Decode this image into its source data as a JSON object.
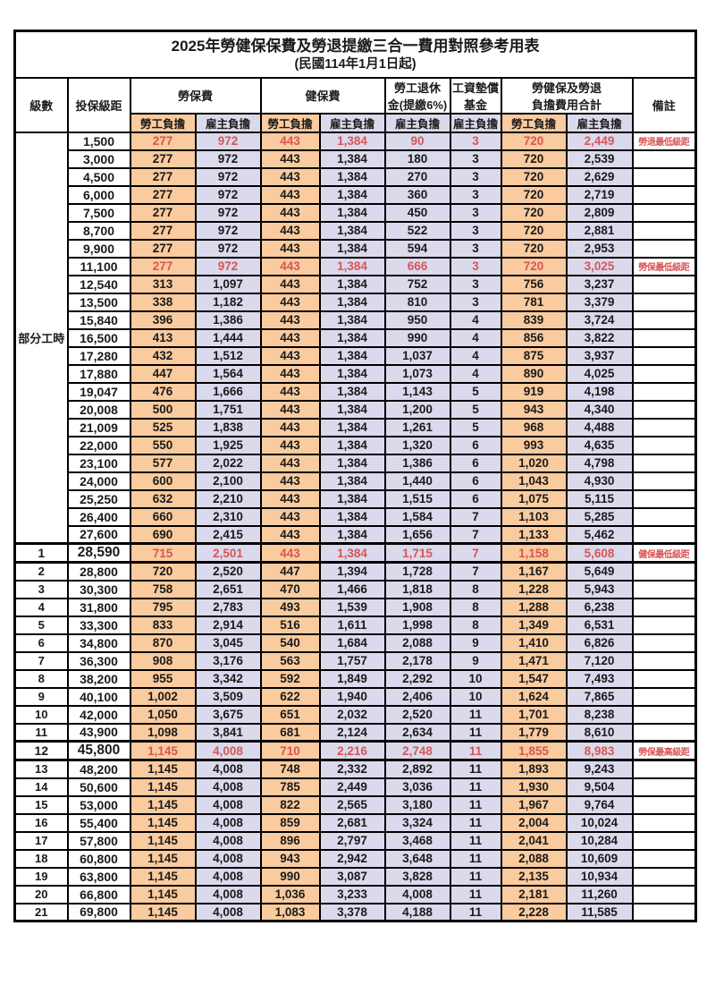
{
  "page": {
    "title_line1": "2025年勞健保保費及勞退提繳三合一費用對照參考用表",
    "title_line2": "(民國114年1月1日起)"
  },
  "colors": {
    "employee_bg": "#F9CB9E",
    "employer_bg": "#DBD9EC",
    "highlight_red": "#D95555",
    "border": "#000000"
  },
  "header": {
    "level": "級數",
    "bracket": "投保級距",
    "labor_fee": "勞保費",
    "health_fee": "健保費",
    "pension_line1": "勞工退休",
    "pension_line2": "金(提繳6%)",
    "fund_line1": "工資墊償",
    "fund_line2": "基金",
    "total_line1": "勞健保及勞退",
    "total_line2": "負擔費用合計",
    "remark": "備註",
    "employee_share": "勞工負擔",
    "employer_share": "雇主負擔"
  },
  "part_time": {
    "label": "部分工時",
    "rowspan": 23
  },
  "rows": [
    {
      "level": "",
      "bracket": "1,500",
      "labor_emp": "277",
      "labor_er": "972",
      "health_emp": "443",
      "health_er": "1,384",
      "pension": "90",
      "fund": "3",
      "total_emp": "720",
      "total_er": "2,449",
      "remark": "勞退最低級距",
      "red": true,
      "emphasis": false
    },
    {
      "level": "",
      "bracket": "3,000",
      "labor_emp": "277",
      "labor_er": "972",
      "health_emp": "443",
      "health_er": "1,384",
      "pension": "180",
      "fund": "3",
      "total_emp": "720",
      "total_er": "2,539",
      "remark": "",
      "red": false,
      "emphasis": false
    },
    {
      "level": "",
      "bracket": "4,500",
      "labor_emp": "277",
      "labor_er": "972",
      "health_emp": "443",
      "health_er": "1,384",
      "pension": "270",
      "fund": "3",
      "total_emp": "720",
      "total_er": "2,629",
      "remark": "",
      "red": false,
      "emphasis": false
    },
    {
      "level": "",
      "bracket": "6,000",
      "labor_emp": "277",
      "labor_er": "972",
      "health_emp": "443",
      "health_er": "1,384",
      "pension": "360",
      "fund": "3",
      "total_emp": "720",
      "total_er": "2,719",
      "remark": "",
      "red": false,
      "emphasis": false
    },
    {
      "level": "",
      "bracket": "7,500",
      "labor_emp": "277",
      "labor_er": "972",
      "health_emp": "443",
      "health_er": "1,384",
      "pension": "450",
      "fund": "3",
      "total_emp": "720",
      "total_er": "2,809",
      "remark": "",
      "red": false,
      "emphasis": false
    },
    {
      "level": "",
      "bracket": "8,700",
      "labor_emp": "277",
      "labor_er": "972",
      "health_emp": "443",
      "health_er": "1,384",
      "pension": "522",
      "fund": "3",
      "total_emp": "720",
      "total_er": "2,881",
      "remark": "",
      "red": false,
      "emphasis": false
    },
    {
      "level": "",
      "bracket": "9,900",
      "labor_emp": "277",
      "labor_er": "972",
      "health_emp": "443",
      "health_er": "1,384",
      "pension": "594",
      "fund": "3",
      "total_emp": "720",
      "total_er": "2,953",
      "remark": "",
      "red": false,
      "emphasis": false
    },
    {
      "level": "",
      "bracket": "11,100",
      "labor_emp": "277",
      "labor_er": "972",
      "health_emp": "443",
      "health_er": "1,384",
      "pension": "666",
      "fund": "3",
      "total_emp": "720",
      "total_er": "3,025",
      "remark": "勞保最低級距",
      "red": true,
      "emphasis": false
    },
    {
      "level": "",
      "bracket": "12,540",
      "labor_emp": "313",
      "labor_er": "1,097",
      "health_emp": "443",
      "health_er": "1,384",
      "pension": "752",
      "fund": "3",
      "total_emp": "756",
      "total_er": "3,237",
      "remark": "",
      "red": false,
      "emphasis": false
    },
    {
      "level": "",
      "bracket": "13,500",
      "labor_emp": "338",
      "labor_er": "1,182",
      "health_emp": "443",
      "health_er": "1,384",
      "pension": "810",
      "fund": "3",
      "total_emp": "781",
      "total_er": "3,379",
      "remark": "",
      "red": false,
      "emphasis": false
    },
    {
      "level": "",
      "bracket": "15,840",
      "labor_emp": "396",
      "labor_er": "1,386",
      "health_emp": "443",
      "health_er": "1,384",
      "pension": "950",
      "fund": "4",
      "total_emp": "839",
      "total_er": "3,724",
      "remark": "",
      "red": false,
      "emphasis": false
    },
    {
      "level": "",
      "bracket": "16,500",
      "labor_emp": "413",
      "labor_er": "1,444",
      "health_emp": "443",
      "health_er": "1,384",
      "pension": "990",
      "fund": "4",
      "total_emp": "856",
      "total_er": "3,822",
      "remark": "",
      "red": false,
      "emphasis": false
    },
    {
      "level": "",
      "bracket": "17,280",
      "labor_emp": "432",
      "labor_er": "1,512",
      "health_emp": "443",
      "health_er": "1,384",
      "pension": "1,037",
      "fund": "4",
      "total_emp": "875",
      "total_er": "3,937",
      "remark": "",
      "red": false,
      "emphasis": false
    },
    {
      "level": "",
      "bracket": "17,880",
      "labor_emp": "447",
      "labor_er": "1,564",
      "health_emp": "443",
      "health_er": "1,384",
      "pension": "1,073",
      "fund": "4",
      "total_emp": "890",
      "total_er": "4,025",
      "remark": "",
      "red": false,
      "emphasis": false
    },
    {
      "level": "",
      "bracket": "19,047",
      "labor_emp": "476",
      "labor_er": "1,666",
      "health_emp": "443",
      "health_er": "1,384",
      "pension": "1,143",
      "fund": "5",
      "total_emp": "919",
      "total_er": "4,198",
      "remark": "",
      "red": false,
      "emphasis": false
    },
    {
      "level": "",
      "bracket": "20,008",
      "labor_emp": "500",
      "labor_er": "1,751",
      "health_emp": "443",
      "health_er": "1,384",
      "pension": "1,200",
      "fund": "5",
      "total_emp": "943",
      "total_er": "4,340",
      "remark": "",
      "red": false,
      "emphasis": false
    },
    {
      "level": "",
      "bracket": "21,009",
      "labor_emp": "525",
      "labor_er": "1,838",
      "health_emp": "443",
      "health_er": "1,384",
      "pension": "1,261",
      "fund": "5",
      "total_emp": "968",
      "total_er": "4,488",
      "remark": "",
      "red": false,
      "emphasis": false
    },
    {
      "level": "",
      "bracket": "22,000",
      "labor_emp": "550",
      "labor_er": "1,925",
      "health_emp": "443",
      "health_er": "1,384",
      "pension": "1,320",
      "fund": "6",
      "total_emp": "993",
      "total_er": "4,635",
      "remark": "",
      "red": false,
      "emphasis": false
    },
    {
      "level": "",
      "bracket": "23,100",
      "labor_emp": "577",
      "labor_er": "2,022",
      "health_emp": "443",
      "health_er": "1,384",
      "pension": "1,386",
      "fund": "6",
      "total_emp": "1,020",
      "total_er": "4,798",
      "remark": "",
      "red": false,
      "emphasis": false
    },
    {
      "level": "",
      "bracket": "24,000",
      "labor_emp": "600",
      "labor_er": "2,100",
      "health_emp": "443",
      "health_er": "1,384",
      "pension": "1,440",
      "fund": "6",
      "total_emp": "1,043",
      "total_er": "4,930",
      "remark": "",
      "red": false,
      "emphasis": false
    },
    {
      "level": "",
      "bracket": "25,250",
      "labor_emp": "632",
      "labor_er": "2,210",
      "health_emp": "443",
      "health_er": "1,384",
      "pension": "1,515",
      "fund": "6",
      "total_emp": "1,075",
      "total_er": "5,115",
      "remark": "",
      "red": false,
      "emphasis": false
    },
    {
      "level": "",
      "bracket": "26,400",
      "labor_emp": "660",
      "labor_er": "2,310",
      "health_emp": "443",
      "health_er": "1,384",
      "pension": "1,584",
      "fund": "7",
      "total_emp": "1,103",
      "total_er": "5,285",
      "remark": "",
      "red": false,
      "emphasis": false
    },
    {
      "level": "",
      "bracket": "27,600",
      "labor_emp": "690",
      "labor_er": "2,415",
      "health_emp": "443",
      "health_er": "1,384",
      "pension": "1,656",
      "fund": "7",
      "total_emp": "1,133",
      "total_er": "5,462",
      "remark": "",
      "red": false,
      "emphasis": false
    },
    {
      "level": "1",
      "bracket": "28,590",
      "labor_emp": "715",
      "labor_er": "2,501",
      "health_emp": "443",
      "health_er": "1,384",
      "pension": "1,715",
      "fund": "7",
      "total_emp": "1,158",
      "total_er": "5,608",
      "remark": "健保最低級距",
      "red": true,
      "emphasis": true
    },
    {
      "level": "2",
      "bracket": "28,800",
      "labor_emp": "720",
      "labor_er": "2,520",
      "health_emp": "447",
      "health_er": "1,394",
      "pension": "1,728",
      "fund": "7",
      "total_emp": "1,167",
      "total_er": "5,649",
      "remark": "",
      "red": false,
      "emphasis": false
    },
    {
      "level": "3",
      "bracket": "30,300",
      "labor_emp": "758",
      "labor_er": "2,651",
      "health_emp": "470",
      "health_er": "1,466",
      "pension": "1,818",
      "fund": "8",
      "total_emp": "1,228",
      "total_er": "5,943",
      "remark": "",
      "red": false,
      "emphasis": false
    },
    {
      "level": "4",
      "bracket": "31,800",
      "labor_emp": "795",
      "labor_er": "2,783",
      "health_emp": "493",
      "health_er": "1,539",
      "pension": "1,908",
      "fund": "8",
      "total_emp": "1,288",
      "total_er": "6,238",
      "remark": "",
      "red": false,
      "emphasis": false
    },
    {
      "level": "5",
      "bracket": "33,300",
      "labor_emp": "833",
      "labor_er": "2,914",
      "health_emp": "516",
      "health_er": "1,611",
      "pension": "1,998",
      "fund": "8",
      "total_emp": "1,349",
      "total_er": "6,531",
      "remark": "",
      "red": false,
      "emphasis": false
    },
    {
      "level": "6",
      "bracket": "34,800",
      "labor_emp": "870",
      "labor_er": "3,045",
      "health_emp": "540",
      "health_er": "1,684",
      "pension": "2,088",
      "fund": "9",
      "total_emp": "1,410",
      "total_er": "6,826",
      "remark": "",
      "red": false,
      "emphasis": false
    },
    {
      "level": "7",
      "bracket": "36,300",
      "labor_emp": "908",
      "labor_er": "3,176",
      "health_emp": "563",
      "health_er": "1,757",
      "pension": "2,178",
      "fund": "9",
      "total_emp": "1,471",
      "total_er": "7,120",
      "remark": "",
      "red": false,
      "emphasis": false
    },
    {
      "level": "8",
      "bracket": "38,200",
      "labor_emp": "955",
      "labor_er": "3,342",
      "health_emp": "592",
      "health_er": "1,849",
      "pension": "2,292",
      "fund": "10",
      "total_emp": "1,547",
      "total_er": "7,493",
      "remark": "",
      "red": false,
      "emphasis": false
    },
    {
      "level": "9",
      "bracket": "40,100",
      "labor_emp": "1,002",
      "labor_er": "3,509",
      "health_emp": "622",
      "health_er": "1,940",
      "pension": "2,406",
      "fund": "10",
      "total_emp": "1,624",
      "total_er": "7,865",
      "remark": "",
      "red": false,
      "emphasis": false
    },
    {
      "level": "10",
      "bracket": "42,000",
      "labor_emp": "1,050",
      "labor_er": "3,675",
      "health_emp": "651",
      "health_er": "2,032",
      "pension": "2,520",
      "fund": "11",
      "total_emp": "1,701",
      "total_er": "8,238",
      "remark": "",
      "red": false,
      "emphasis": false
    },
    {
      "level": "11",
      "bracket": "43,900",
      "labor_emp": "1,098",
      "labor_er": "3,841",
      "health_emp": "681",
      "health_er": "2,124",
      "pension": "2,634",
      "fund": "11",
      "total_emp": "1,779",
      "total_er": "8,610",
      "remark": "",
      "red": false,
      "emphasis": false
    },
    {
      "level": "12",
      "bracket": "45,800",
      "labor_emp": "1,145",
      "labor_er": "4,008",
      "health_emp": "710",
      "health_er": "2,216",
      "pension": "2,748",
      "fund": "11",
      "total_emp": "1,855",
      "total_er": "8,983",
      "remark": "勞保最高級距",
      "red": true,
      "emphasis": true
    },
    {
      "level": "13",
      "bracket": "48,200",
      "labor_emp": "1,145",
      "labor_er": "4,008",
      "health_emp": "748",
      "health_er": "2,332",
      "pension": "2,892",
      "fund": "11",
      "total_emp": "1,893",
      "total_er": "9,243",
      "remark": "",
      "red": false,
      "emphasis": false
    },
    {
      "level": "14",
      "bracket": "50,600",
      "labor_emp": "1,145",
      "labor_er": "4,008",
      "health_emp": "785",
      "health_er": "2,449",
      "pension": "3,036",
      "fund": "11",
      "total_emp": "1,930",
      "total_er": "9,504",
      "remark": "",
      "red": false,
      "emphasis": false
    },
    {
      "level": "15",
      "bracket": "53,000",
      "labor_emp": "1,145",
      "labor_er": "4,008",
      "health_emp": "822",
      "health_er": "2,565",
      "pension": "3,180",
      "fund": "11",
      "total_emp": "1,967",
      "total_er": "9,764",
      "remark": "",
      "red": false,
      "emphasis": false
    },
    {
      "level": "16",
      "bracket": "55,400",
      "labor_emp": "1,145",
      "labor_er": "4,008",
      "health_emp": "859",
      "health_er": "2,681",
      "pension": "3,324",
      "fund": "11",
      "total_emp": "2,004",
      "total_er": "10,024",
      "remark": "",
      "red": false,
      "emphasis": false
    },
    {
      "level": "17",
      "bracket": "57,800",
      "labor_emp": "1,145",
      "labor_er": "4,008",
      "health_emp": "896",
      "health_er": "2,797",
      "pension": "3,468",
      "fund": "11",
      "total_emp": "2,041",
      "total_er": "10,284",
      "remark": "",
      "red": false,
      "emphasis": false
    },
    {
      "level": "18",
      "bracket": "60,800",
      "labor_emp": "1,145",
      "labor_er": "4,008",
      "health_emp": "943",
      "health_er": "2,942",
      "pension": "3,648",
      "fund": "11",
      "total_emp": "2,088",
      "total_er": "10,609",
      "remark": "",
      "red": false,
      "emphasis": false
    },
    {
      "level": "19",
      "bracket": "63,800",
      "labor_emp": "1,145",
      "labor_er": "4,008",
      "health_emp": "990",
      "health_er": "3,087",
      "pension": "3,828",
      "fund": "11",
      "total_emp": "2,135",
      "total_er": "10,934",
      "remark": "",
      "red": false,
      "emphasis": false
    },
    {
      "level": "20",
      "bracket": "66,800",
      "labor_emp": "1,145",
      "labor_er": "4,008",
      "health_emp": "1,036",
      "health_er": "3,233",
      "pension": "4,008",
      "fund": "11",
      "total_emp": "2,181",
      "total_er": "11,260",
      "remark": "",
      "red": false,
      "emphasis": false
    },
    {
      "level": "21",
      "bracket": "69,800",
      "labor_emp": "1,145",
      "labor_er": "4,008",
      "health_emp": "1,083",
      "health_er": "3,378",
      "pension": "4,188",
      "fund": "11",
      "total_emp": "2,228",
      "total_er": "11,585",
      "remark": "",
      "red": false,
      "emphasis": false
    }
  ]
}
